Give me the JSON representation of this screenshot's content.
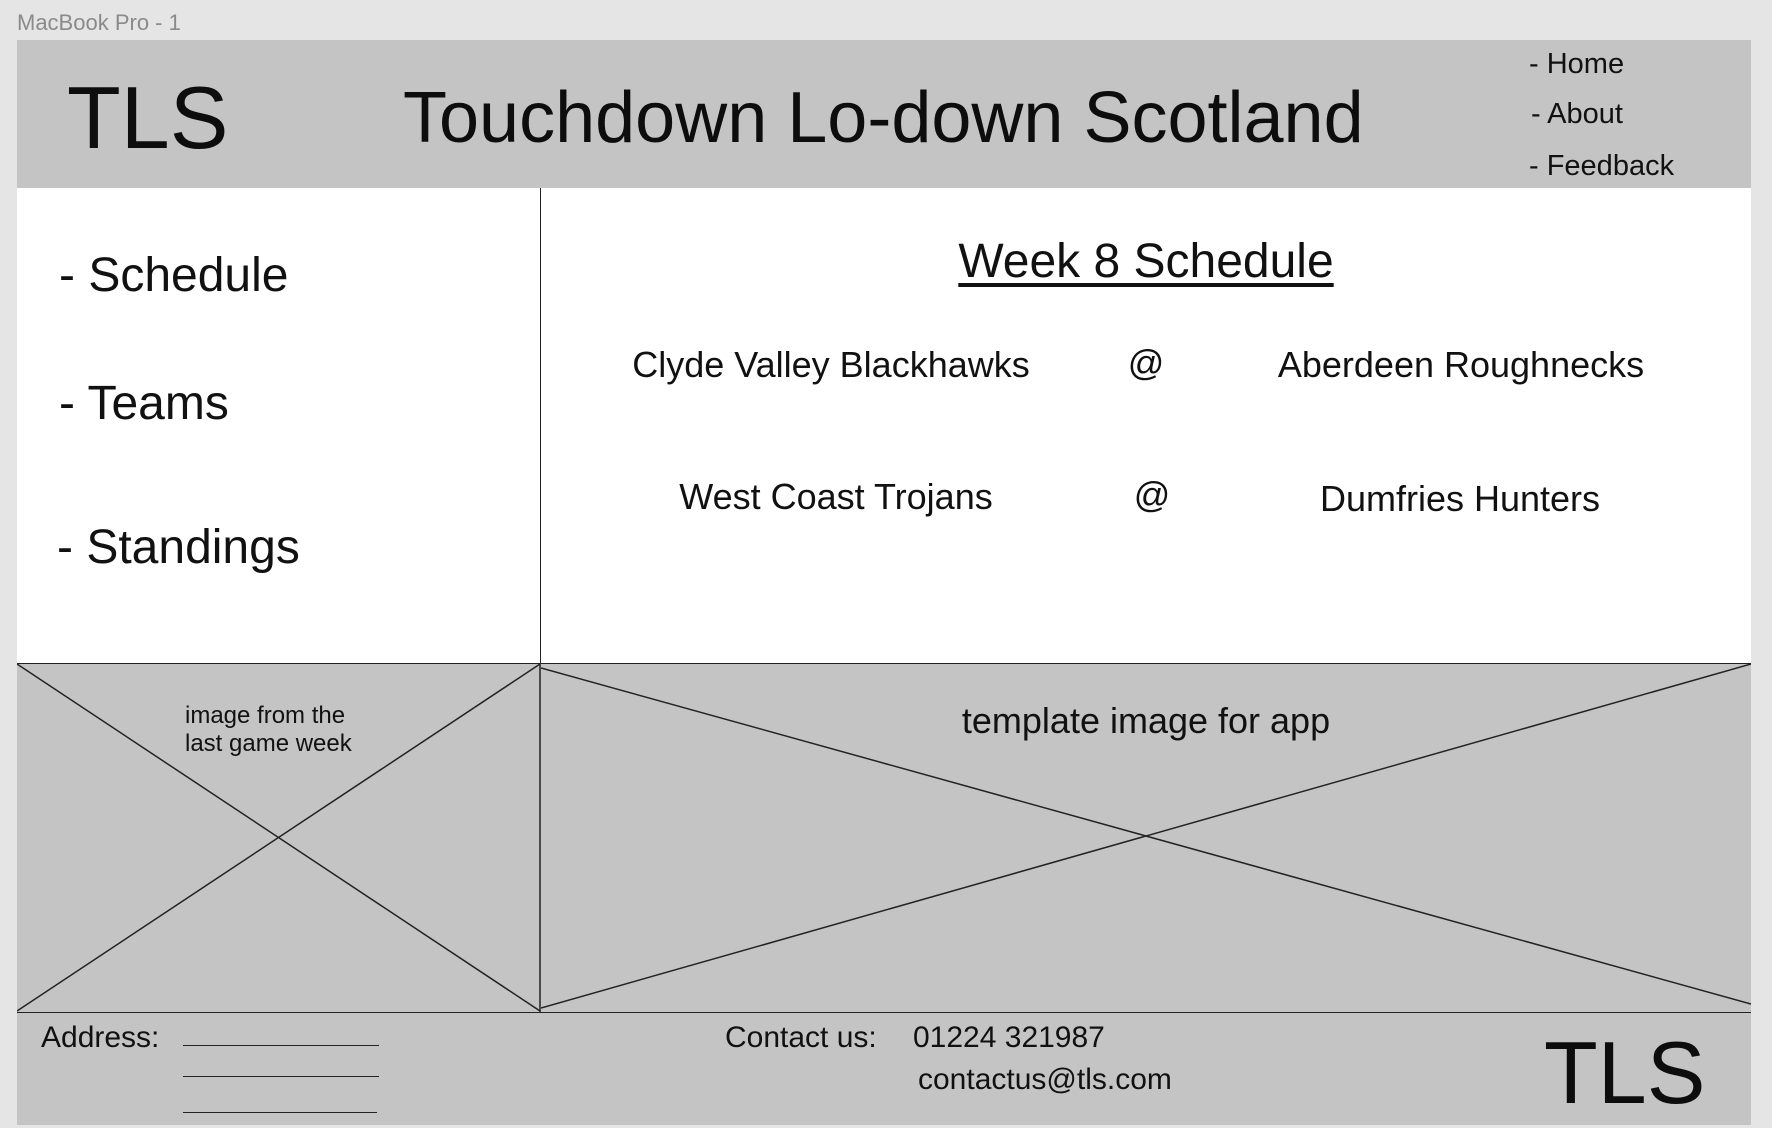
{
  "frame_label": "MacBook Pro - 1",
  "header": {
    "logo": "TLS",
    "title": "Touchdown Lo-down Scotland",
    "nav": [
      "- Home",
      "- About",
      "- Feedback"
    ]
  },
  "sidebar": {
    "items": [
      "- Schedule",
      "- Teams",
      "- Standings"
    ]
  },
  "schedule": {
    "title": "Week 8 Schedule",
    "separator": "@",
    "games": [
      {
        "away": "Clyde Valley Blackhawks",
        "home": "Aberdeen Roughnecks"
      },
      {
        "away": "West Coast Trojans",
        "home": "Dumfries Hunters"
      }
    ]
  },
  "images": {
    "left_caption_line1": "image from the",
    "left_caption_line2": "last game week",
    "right_caption": "template image for app"
  },
  "footer": {
    "address_label": "Address:",
    "contact_label": "Contact us:",
    "phone": "01224 321987",
    "email": "contactus@tls.com",
    "logo": "TLS"
  }
}
